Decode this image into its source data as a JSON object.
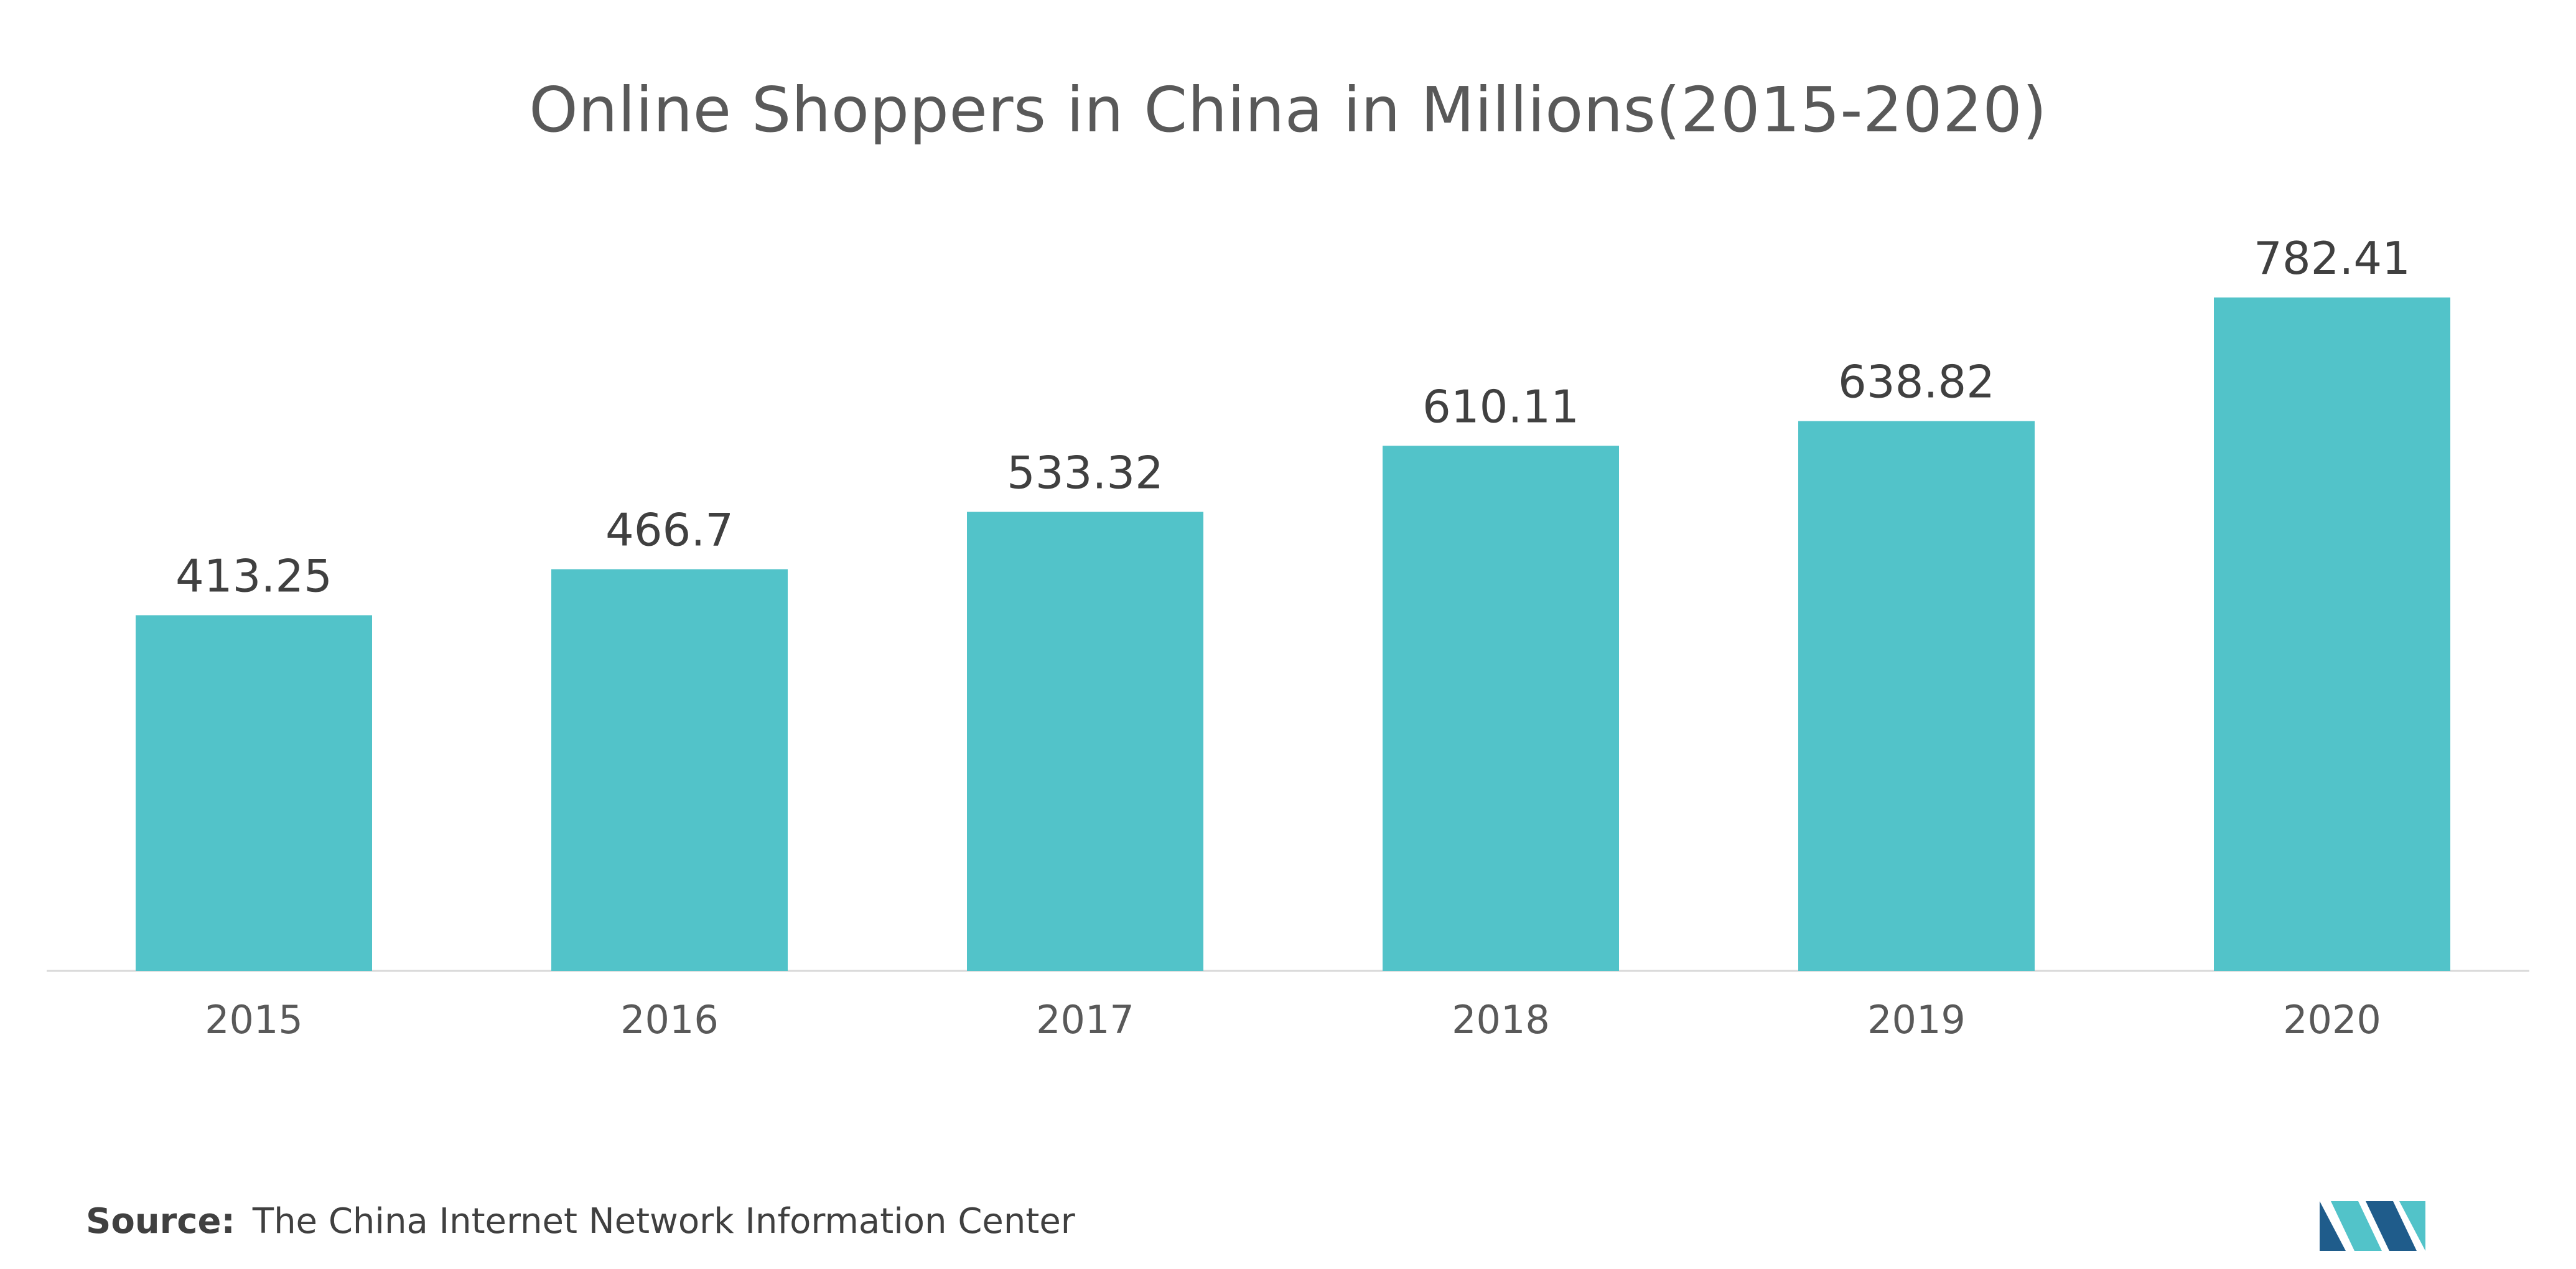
{
  "chart_data": {
    "type": "bar",
    "title": "Online Shoppers in China in Millions(2015-2020)",
    "categories": [
      "2015",
      "2016",
      "2017",
      "2018",
      "2019",
      "2020"
    ],
    "values": [
      413.25,
      466.7,
      533.32,
      610.11,
      638.82,
      782.41
    ],
    "value_labels": [
      "413.25",
      "466.7",
      "533.32",
      "610.11",
      "638.82",
      "782.41"
    ],
    "xlabel": "",
    "ylabel": "",
    "ylim": [
      0,
      782.41
    ],
    "grid": false,
    "legend": "none",
    "bar_color": "#52c3c9",
    "baseline_color": "#d9d9d9"
  },
  "source": {
    "label": "Source:",
    "text": "The China Internet Network Information Center"
  },
  "logo": {
    "icon": "mordor-intelligence-logo-icon",
    "colors": [
      "#1f5c8b",
      "#52c3c9"
    ]
  }
}
